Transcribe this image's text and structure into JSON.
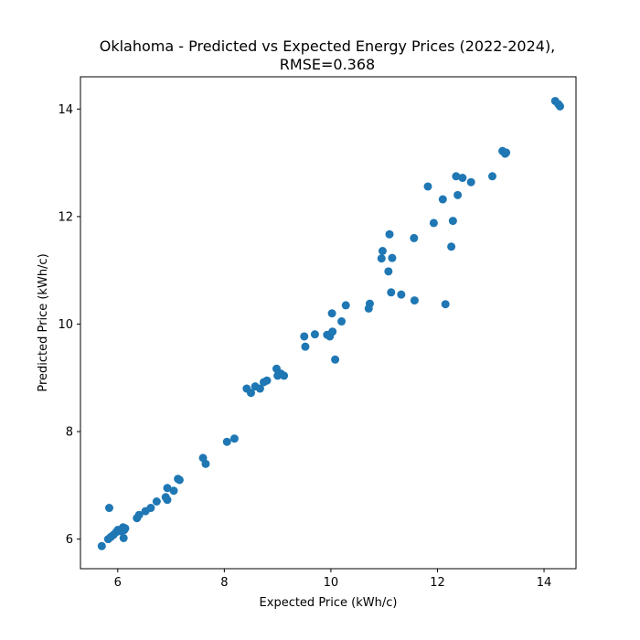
{
  "chart_data": {
    "type": "scatter",
    "title": "Oklahoma - Predicted vs Expected Energy Prices (2022-2024),",
    "subtitle": "RMSE=0.368",
    "xlabel": "Expected Price (kWh/c)",
    "ylabel": "Predicted Price (kWh/c)",
    "xlim": [
      5.3,
      14.6
    ],
    "ylim": [
      5.45,
      14.6
    ],
    "xticks": [
      6,
      8,
      10,
      12,
      14
    ],
    "yticks": [
      6,
      8,
      10,
      12,
      14
    ],
    "grid": false,
    "legend": "none",
    "marker_color": "#1f77b4",
    "points": [
      {
        "x": 5.7,
        "y": 5.87
      },
      {
        "x": 5.82,
        "y": 6.0
      },
      {
        "x": 5.87,
        "y": 6.04
      },
      {
        "x": 5.92,
        "y": 6.08
      },
      {
        "x": 5.97,
        "y": 6.13
      },
      {
        "x": 6.0,
        "y": 6.17
      },
      {
        "x": 6.05,
        "y": 6.15
      },
      {
        "x": 6.1,
        "y": 6.22
      },
      {
        "x": 6.12,
        "y": 6.17
      },
      {
        "x": 6.14,
        "y": 6.2
      },
      {
        "x": 6.11,
        "y": 6.02
      },
      {
        "x": 5.84,
        "y": 6.58
      },
      {
        "x": 6.36,
        "y": 6.39
      },
      {
        "x": 6.4,
        "y": 6.45
      },
      {
        "x": 6.52,
        "y": 6.52
      },
      {
        "x": 6.62,
        "y": 6.58
      },
      {
        "x": 6.73,
        "y": 6.7
      },
      {
        "x": 6.9,
        "y": 6.78
      },
      {
        "x": 6.93,
        "y": 6.73
      },
      {
        "x": 6.93,
        "y": 6.95
      },
      {
        "x": 7.05,
        "y": 6.9
      },
      {
        "x": 7.13,
        "y": 7.12
      },
      {
        "x": 7.16,
        "y": 7.1
      },
      {
        "x": 7.6,
        "y": 7.51
      },
      {
        "x": 7.65,
        "y": 7.4
      },
      {
        "x": 8.05,
        "y": 7.81
      },
      {
        "x": 8.19,
        "y": 7.87
      },
      {
        "x": 8.42,
        "y": 8.8
      },
      {
        "x": 8.5,
        "y": 8.72
      },
      {
        "x": 8.58,
        "y": 8.84
      },
      {
        "x": 8.67,
        "y": 8.8
      },
      {
        "x": 8.74,
        "y": 8.92
      },
      {
        "x": 8.8,
        "y": 8.95
      },
      {
        "x": 8.98,
        "y": 9.17
      },
      {
        "x": 9.0,
        "y": 9.04
      },
      {
        "x": 9.06,
        "y": 9.08
      },
      {
        "x": 9.12,
        "y": 9.04
      },
      {
        "x": 9.5,
        "y": 9.77
      },
      {
        "x": 9.52,
        "y": 9.58
      },
      {
        "x": 9.7,
        "y": 9.81
      },
      {
        "x": 9.93,
        "y": 9.8
      },
      {
        "x": 9.98,
        "y": 9.77
      },
      {
        "x": 10.03,
        "y": 9.86
      },
      {
        "x": 10.02,
        "y": 10.2
      },
      {
        "x": 10.08,
        "y": 9.34
      },
      {
        "x": 10.2,
        "y": 10.05
      },
      {
        "x": 10.28,
        "y": 10.35
      },
      {
        "x": 10.71,
        "y": 10.29
      },
      {
        "x": 10.73,
        "y": 10.38
      },
      {
        "x": 10.95,
        "y": 11.22
      },
      {
        "x": 10.97,
        "y": 11.36
      },
      {
        "x": 11.1,
        "y": 11.67
      },
      {
        "x": 11.08,
        "y": 10.98
      },
      {
        "x": 11.13,
        "y": 10.59
      },
      {
        "x": 11.15,
        "y": 11.23
      },
      {
        "x": 11.32,
        "y": 10.55
      },
      {
        "x": 11.57,
        "y": 10.44
      },
      {
        "x": 11.56,
        "y": 11.6
      },
      {
        "x": 11.82,
        "y": 12.56
      },
      {
        "x": 11.93,
        "y": 11.88
      },
      {
        "x": 12.1,
        "y": 12.32
      },
      {
        "x": 12.15,
        "y": 10.37
      },
      {
        "x": 12.26,
        "y": 11.44
      },
      {
        "x": 12.29,
        "y": 11.92
      },
      {
        "x": 12.35,
        "y": 12.75
      },
      {
        "x": 12.38,
        "y": 12.4
      },
      {
        "x": 12.47,
        "y": 12.72
      },
      {
        "x": 12.63,
        "y": 12.64
      },
      {
        "x": 13.03,
        "y": 12.75
      },
      {
        "x": 13.22,
        "y": 13.22
      },
      {
        "x": 13.27,
        "y": 13.17
      },
      {
        "x": 13.29,
        "y": 13.19
      },
      {
        "x": 14.21,
        "y": 14.15
      },
      {
        "x": 14.27,
        "y": 14.09
      },
      {
        "x": 14.3,
        "y": 14.05
      }
    ]
  }
}
